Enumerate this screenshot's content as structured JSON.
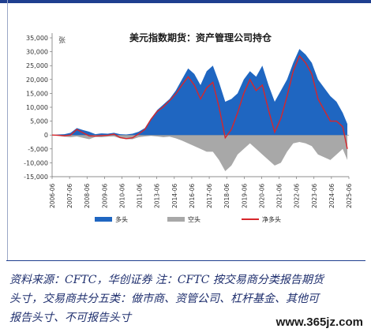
{
  "chart_data": {
    "type": "area",
    "title": "美元指数期货：资产管理公司持仓",
    "ylabel": "张",
    "ylim": [
      -15000,
      35000
    ],
    "yticks": [
      35000,
      30000,
      25000,
      20000,
      15000,
      10000,
      5000,
      0,
      -5000,
      -10000,
      -15000
    ],
    "ytick_labels": [
      "35,000",
      "30,000",
      "25,000",
      "20,000",
      "15,000",
      "10,000",
      "5,000",
      "0",
      "-5,000",
      "-10,000",
      "-15,000"
    ],
    "xticks": [
      "2006-06",
      "2007-06",
      "2008-06",
      "2009-06",
      "2010-06",
      "2011-06",
      "2013-06",
      "2014-06",
      "2016-06",
      "2017-06",
      "2018-06",
      "2019-06",
      "2020-06",
      "2021-06",
      "2022-06",
      "2023-06",
      "2024-06",
      "2025-06"
    ],
    "legend_position": "bottom",
    "colors": {
      "long": "#1f66c1",
      "short": "#a8a8a8",
      "net": "#d7262b"
    },
    "x": [
      2006.4,
      2006.8,
      2007.2,
      2007.6,
      2008.0,
      2008.4,
      2008.8,
      2009.2,
      2009.6,
      2010.0,
      2010.4,
      2010.8,
      2011.2,
      2011.6,
      2012.0,
      2012.4,
      2012.8,
      2013.2,
      2013.6,
      2014.0,
      2014.4,
      2014.8,
      2015.2,
      2015.6,
      2016.0,
      2016.4,
      2016.8,
      2017.2,
      2017.6,
      2018.0,
      2018.4,
      2018.8,
      2019.2,
      2019.6,
      2020.0,
      2020.4,
      2020.8,
      2021.2,
      2021.6,
      2022.0,
      2022.4,
      2022.8,
      2023.2,
      2023.6,
      2024.0,
      2024.4,
      2024.8,
      2025.2,
      2025.5
    ],
    "series": [
      {
        "name": "多头",
        "values": [
          0,
          200,
          300,
          800,
          2500,
          1800,
          1200,
          300,
          600,
          500,
          800,
          300,
          200,
          500,
          1200,
          2500,
          6000,
          9000,
          11000,
          13000,
          16000,
          20000,
          24000,
          22000,
          18000,
          23000,
          25000,
          19000,
          12000,
          13000,
          15000,
          20000,
          23000,
          21000,
          25000,
          18000,
          12000,
          16000,
          20000,
          26000,
          31000,
          29000,
          26000,
          20000,
          17000,
          14000,
          12000,
          8000,
          4000
        ]
      },
      {
        "name": "空头",
        "values": [
          0,
          -300,
          -600,
          -800,
          -500,
          -1000,
          -1500,
          -700,
          -800,
          -600,
          -500,
          -1200,
          -1500,
          -1500,
          -800,
          -500,
          -300,
          -500,
          -800,
          -600,
          -1200,
          -2000,
          -3000,
          -4000,
          -5000,
          -6000,
          -6000,
          -9000,
          -13000,
          -11000,
          -7000,
          -5000,
          -3000,
          -5000,
          -7000,
          -9000,
          -11000,
          -10000,
          -6000,
          -3000,
          -2500,
          -3000,
          -4000,
          -7000,
          -8000,
          -9000,
          -7000,
          -5000,
          -9000
        ]
      },
      {
        "name": "净多头",
        "values": [
          0,
          -100,
          -300,
          0,
          2000,
          800,
          -300,
          -400,
          -200,
          -100,
          300,
          -900,
          -1300,
          -1000,
          400,
          2000,
          5700,
          8500,
          10200,
          12400,
          14800,
          18000,
          21000,
          18000,
          13000,
          17000,
          19000,
          10000,
          -1000,
          2000,
          8000,
          15000,
          20000,
          16000,
          18000,
          9000,
          1000,
          6000,
          14000,
          23000,
          28500,
          26000,
          22000,
          13000,
          9000,
          5000,
          5000,
          3000,
          -5000
        ]
      }
    ]
  },
  "caption": {
    "line1": "资料来源：CFTC，华创证券   注：CFTC 按交易商分类报告期货",
    "line2": "头寸，交易商共分五类：做市商、资管公司、杠杆基金、其他可",
    "line3": "报告头寸、不可报告头寸"
  },
  "watermark": "www.365jz.com"
}
